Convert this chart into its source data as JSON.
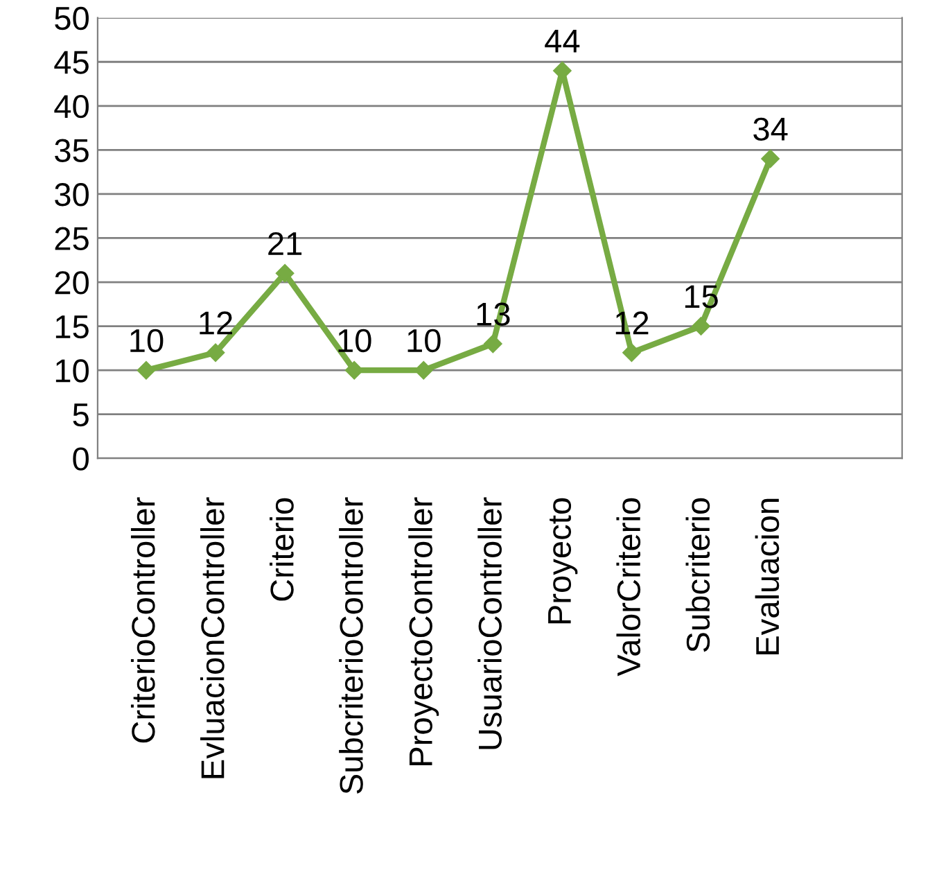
{
  "chart_data": {
    "type": "line",
    "categories": [
      "CriterioController",
      "EvluacionController",
      "Criterio",
      "SubcriterioController",
      "ProyectoController",
      "UsuarioController",
      "Proyecto",
      "ValorCriterio",
      "Subcriterio",
      "Evaluacion"
    ],
    "series": [
      {
        "color": "#77ab43",
        "values": [
          10,
          12,
          21,
          10,
          10,
          13,
          44,
          12,
          15,
          34
        ]
      }
    ],
    "ylim": [
      0,
      50
    ],
    "yticks": [
      0,
      5,
      10,
      15,
      20,
      25,
      30,
      35,
      40,
      45,
      50
    ],
    "grid": "y",
    "marker": "diamond",
    "line_style": "solid",
    "data_labels": true
  }
}
